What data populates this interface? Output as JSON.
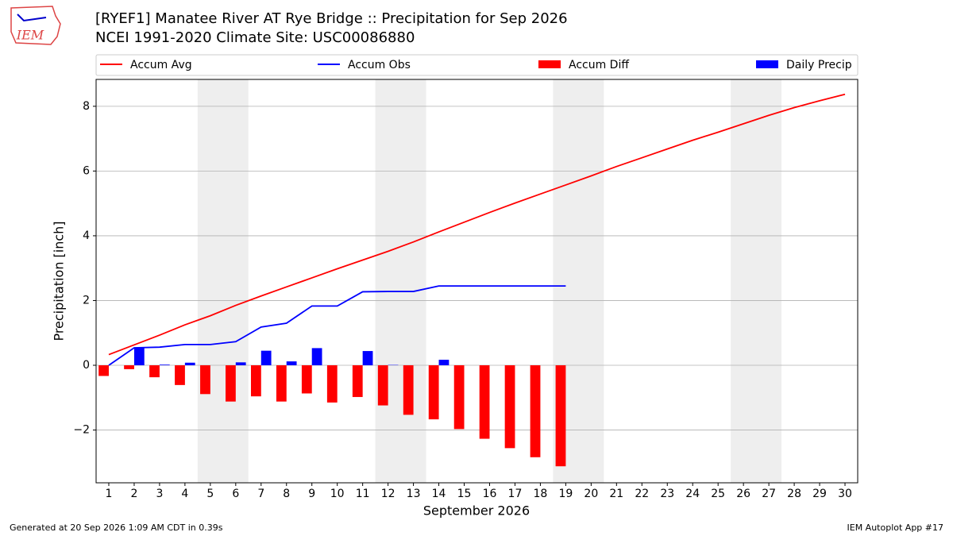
{
  "chart_data": {
    "type": "bar_line",
    "title": "[RYEF1] Manatee River  AT Rye Bridge :: Precipitation for Sep 2026",
    "subtitle": "NCEI 1991-2020 Climate Site: USC00086880",
    "logo": "IEM",
    "x_label": "September 2026",
    "y_label": "Precipitation [inch]",
    "footer_left": "Generated at 20 Sep 2026 1:09 AM CDT in 0.39s",
    "footer_right": "IEM Autoplot App #17",
    "x": [
      1,
      2,
      3,
      4,
      5,
      6,
      7,
      8,
      9,
      10,
      11,
      12,
      13,
      14,
      15,
      16,
      17,
      18,
      19,
      20,
      21,
      22,
      23,
      24,
      25,
      26,
      27,
      28,
      29,
      30
    ],
    "xlim": [
      0.5,
      30.5
    ],
    "xticks": [
      1,
      2,
      3,
      4,
      5,
      6,
      7,
      8,
      9,
      10,
      11,
      12,
      13,
      14,
      15,
      16,
      17,
      18,
      19,
      20,
      21,
      22,
      23,
      24,
      25,
      26,
      27,
      28,
      29,
      30
    ],
    "ylim": [
      -3.63,
      8.83
    ],
    "yticks": [
      {
        "value": -2,
        "label": "−2"
      },
      0,
      2,
      4,
      6,
      8
    ],
    "grid": true,
    "shaded_spans": [
      [
        4.5,
        6.5
      ],
      [
        11.5,
        13.5
      ],
      [
        18.5,
        20.5
      ],
      [
        25.5,
        27.5
      ]
    ],
    "shade_color": "#eeeeee",
    "series": [
      {
        "name": "Accum Avg",
        "kind": "line",
        "color": "#ff0000",
        "values": [
          0.33,
          0.63,
          0.93,
          1.25,
          1.53,
          1.85,
          2.14,
          2.42,
          2.7,
          2.98,
          3.25,
          3.52,
          3.81,
          4.12,
          4.42,
          4.72,
          5.01,
          5.29,
          5.57,
          5.85,
          6.14,
          6.41,
          6.68,
          6.95,
          7.2,
          7.46,
          7.72,
          7.96,
          8.17,
          8.37
        ]
      },
      {
        "name": "Accum Obs",
        "kind": "line",
        "color": "#0000ff",
        "values": [
          0.0,
          0.54,
          0.56,
          0.64,
          0.64,
          0.73,
          1.18,
          1.3,
          1.83,
          1.83,
          2.27,
          2.28,
          2.28,
          2.45,
          2.45,
          2.45,
          2.45,
          2.45,
          2.45,
          null,
          null,
          null,
          null,
          null,
          null,
          null,
          null,
          null,
          null,
          null
        ]
      },
      {
        "name": "Accum Diff",
        "kind": "bar",
        "offset": -0.4,
        "color": "#ff0000",
        "values": [
          -0.33,
          -0.12,
          -0.37,
          -0.61,
          -0.89,
          -1.12,
          -0.96,
          -1.12,
          -0.87,
          -1.15,
          -0.98,
          -1.24,
          -1.53,
          -1.67,
          -1.97,
          -2.27,
          -2.56,
          -2.84,
          -3.12,
          null,
          null,
          null,
          null,
          null,
          null,
          null,
          null,
          null,
          null,
          null
        ]
      },
      {
        "name": "Daily Precip",
        "kind": "bar",
        "offset": 0,
        "color": "#0000ff",
        "values": [
          0,
          0.54,
          0.02,
          0.08,
          0,
          0.09,
          0.45,
          0.12,
          0.53,
          0,
          0.44,
          0.01,
          0,
          0.17,
          0,
          0,
          0,
          0,
          0,
          null,
          null,
          null,
          null,
          null,
          null,
          null,
          null,
          null,
          null,
          null
        ]
      }
    ]
  }
}
